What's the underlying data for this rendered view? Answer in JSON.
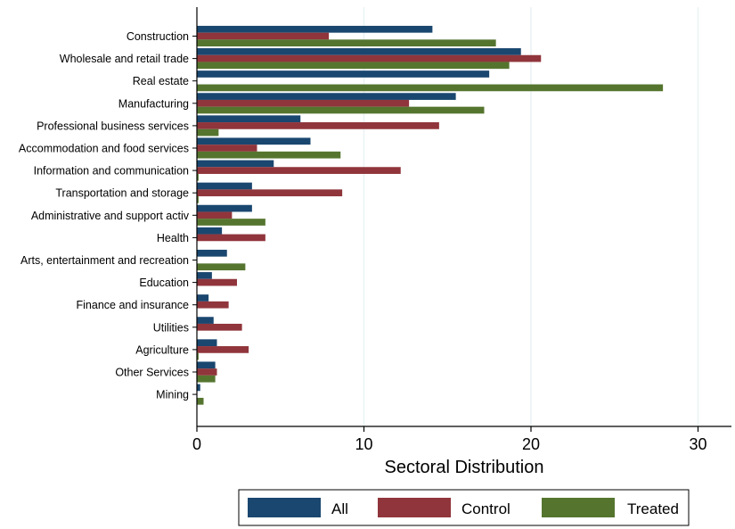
{
  "chart_data": {
    "type": "bar",
    "orientation": "horizontal",
    "title": "",
    "xlabel": "Sectoral Distribution",
    "ylabel": "",
    "xlim": [
      0,
      32
    ],
    "xticks": [
      "0",
      "10",
      "20",
      "30"
    ],
    "grid": "vertical",
    "legend_position": "bottom",
    "categories": [
      "Construction",
      "Wholesale and retail trade",
      "Real estate",
      "Manufacturing",
      "Professional business services",
      "Accommodation and food services",
      "Information and communication",
      "Transportation and storage",
      "Administrative and support activ",
      "Health",
      "Arts, entertainment and recreation",
      "Education",
      "Finance and insurance",
      "Utilities",
      "Agriculture",
      "Other Services",
      "Mining"
    ],
    "series": [
      {
        "name": "All",
        "color": "#1a476f",
        "values": [
          14.1,
          19.4,
          17.5,
          15.5,
          6.2,
          6.8,
          4.6,
          3.3,
          3.3,
          1.5,
          1.8,
          0.9,
          0.7,
          1.0,
          1.2,
          1.1,
          0.2
        ]
      },
      {
        "name": "Control",
        "color": "#90353b",
        "values": [
          7.9,
          20.6,
          0.0,
          12.7,
          14.5,
          3.6,
          12.2,
          8.7,
          2.1,
          4.1,
          0.0,
          2.4,
          1.9,
          2.7,
          3.1,
          1.2,
          0.0
        ]
      },
      {
        "name": "Treated",
        "color": "#55752f",
        "values": [
          17.9,
          18.7,
          27.9,
          17.2,
          1.3,
          8.6,
          0.1,
          0.1,
          4.1,
          0.0,
          2.9,
          0.0,
          0.0,
          0.0,
          0.1,
          1.1,
          0.4
        ]
      }
    ]
  }
}
